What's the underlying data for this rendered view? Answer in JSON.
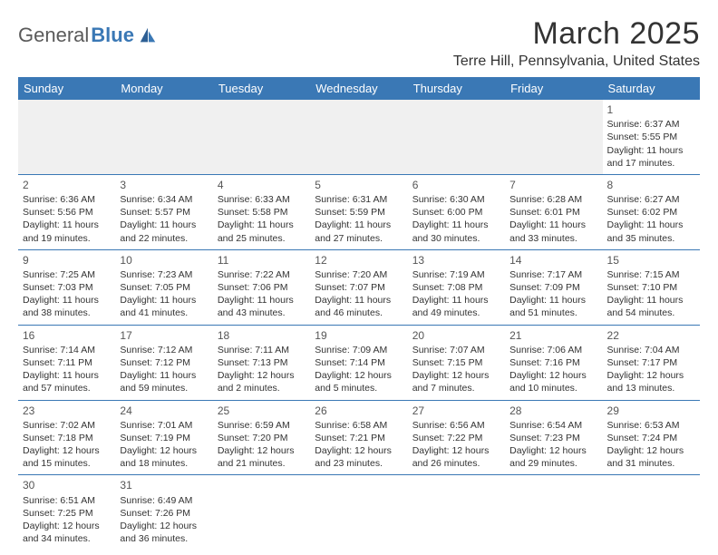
{
  "logo": {
    "part1": "General",
    "part2": "Blue"
  },
  "title": "March 2025",
  "location": "Terre Hill, Pennsylvania, United States",
  "colors": {
    "header_bg": "#3a78b5",
    "header_text": "#ffffff",
    "border": "#3a78b5",
    "text": "#333333",
    "blank_bg": "#f0f0f0"
  },
  "weekdays": [
    "Sunday",
    "Monday",
    "Tuesday",
    "Wednesday",
    "Thursday",
    "Friday",
    "Saturday"
  ],
  "weeks": [
    [
      null,
      null,
      null,
      null,
      null,
      null,
      {
        "n": "1",
        "sr": "Sunrise: 6:37 AM",
        "ss": "Sunset: 5:55 PM",
        "dl": "Daylight: 11 hours and 17 minutes."
      }
    ],
    [
      {
        "n": "2",
        "sr": "Sunrise: 6:36 AM",
        "ss": "Sunset: 5:56 PM",
        "dl": "Daylight: 11 hours and 19 minutes."
      },
      {
        "n": "3",
        "sr": "Sunrise: 6:34 AM",
        "ss": "Sunset: 5:57 PM",
        "dl": "Daylight: 11 hours and 22 minutes."
      },
      {
        "n": "4",
        "sr": "Sunrise: 6:33 AM",
        "ss": "Sunset: 5:58 PM",
        "dl": "Daylight: 11 hours and 25 minutes."
      },
      {
        "n": "5",
        "sr": "Sunrise: 6:31 AM",
        "ss": "Sunset: 5:59 PM",
        "dl": "Daylight: 11 hours and 27 minutes."
      },
      {
        "n": "6",
        "sr": "Sunrise: 6:30 AM",
        "ss": "Sunset: 6:00 PM",
        "dl": "Daylight: 11 hours and 30 minutes."
      },
      {
        "n": "7",
        "sr": "Sunrise: 6:28 AM",
        "ss": "Sunset: 6:01 PM",
        "dl": "Daylight: 11 hours and 33 minutes."
      },
      {
        "n": "8",
        "sr": "Sunrise: 6:27 AM",
        "ss": "Sunset: 6:02 PM",
        "dl": "Daylight: 11 hours and 35 minutes."
      }
    ],
    [
      {
        "n": "9",
        "sr": "Sunrise: 7:25 AM",
        "ss": "Sunset: 7:03 PM",
        "dl": "Daylight: 11 hours and 38 minutes."
      },
      {
        "n": "10",
        "sr": "Sunrise: 7:23 AM",
        "ss": "Sunset: 7:05 PM",
        "dl": "Daylight: 11 hours and 41 minutes."
      },
      {
        "n": "11",
        "sr": "Sunrise: 7:22 AM",
        "ss": "Sunset: 7:06 PM",
        "dl": "Daylight: 11 hours and 43 minutes."
      },
      {
        "n": "12",
        "sr": "Sunrise: 7:20 AM",
        "ss": "Sunset: 7:07 PM",
        "dl": "Daylight: 11 hours and 46 minutes."
      },
      {
        "n": "13",
        "sr": "Sunrise: 7:19 AM",
        "ss": "Sunset: 7:08 PM",
        "dl": "Daylight: 11 hours and 49 minutes."
      },
      {
        "n": "14",
        "sr": "Sunrise: 7:17 AM",
        "ss": "Sunset: 7:09 PM",
        "dl": "Daylight: 11 hours and 51 minutes."
      },
      {
        "n": "15",
        "sr": "Sunrise: 7:15 AM",
        "ss": "Sunset: 7:10 PM",
        "dl": "Daylight: 11 hours and 54 minutes."
      }
    ],
    [
      {
        "n": "16",
        "sr": "Sunrise: 7:14 AM",
        "ss": "Sunset: 7:11 PM",
        "dl": "Daylight: 11 hours and 57 minutes."
      },
      {
        "n": "17",
        "sr": "Sunrise: 7:12 AM",
        "ss": "Sunset: 7:12 PM",
        "dl": "Daylight: 11 hours and 59 minutes."
      },
      {
        "n": "18",
        "sr": "Sunrise: 7:11 AM",
        "ss": "Sunset: 7:13 PM",
        "dl": "Daylight: 12 hours and 2 minutes."
      },
      {
        "n": "19",
        "sr": "Sunrise: 7:09 AM",
        "ss": "Sunset: 7:14 PM",
        "dl": "Daylight: 12 hours and 5 minutes."
      },
      {
        "n": "20",
        "sr": "Sunrise: 7:07 AM",
        "ss": "Sunset: 7:15 PM",
        "dl": "Daylight: 12 hours and 7 minutes."
      },
      {
        "n": "21",
        "sr": "Sunrise: 7:06 AM",
        "ss": "Sunset: 7:16 PM",
        "dl": "Daylight: 12 hours and 10 minutes."
      },
      {
        "n": "22",
        "sr": "Sunrise: 7:04 AM",
        "ss": "Sunset: 7:17 PM",
        "dl": "Daylight: 12 hours and 13 minutes."
      }
    ],
    [
      {
        "n": "23",
        "sr": "Sunrise: 7:02 AM",
        "ss": "Sunset: 7:18 PM",
        "dl": "Daylight: 12 hours and 15 minutes."
      },
      {
        "n": "24",
        "sr": "Sunrise: 7:01 AM",
        "ss": "Sunset: 7:19 PM",
        "dl": "Daylight: 12 hours and 18 minutes."
      },
      {
        "n": "25",
        "sr": "Sunrise: 6:59 AM",
        "ss": "Sunset: 7:20 PM",
        "dl": "Daylight: 12 hours and 21 minutes."
      },
      {
        "n": "26",
        "sr": "Sunrise: 6:58 AM",
        "ss": "Sunset: 7:21 PM",
        "dl": "Daylight: 12 hours and 23 minutes."
      },
      {
        "n": "27",
        "sr": "Sunrise: 6:56 AM",
        "ss": "Sunset: 7:22 PM",
        "dl": "Daylight: 12 hours and 26 minutes."
      },
      {
        "n": "28",
        "sr": "Sunrise: 6:54 AM",
        "ss": "Sunset: 7:23 PM",
        "dl": "Daylight: 12 hours and 29 minutes."
      },
      {
        "n": "29",
        "sr": "Sunrise: 6:53 AM",
        "ss": "Sunset: 7:24 PM",
        "dl": "Daylight: 12 hours and 31 minutes."
      }
    ],
    [
      {
        "n": "30",
        "sr": "Sunrise: 6:51 AM",
        "ss": "Sunset: 7:25 PM",
        "dl": "Daylight: 12 hours and 34 minutes."
      },
      {
        "n": "31",
        "sr": "Sunrise: 6:49 AM",
        "ss": "Sunset: 7:26 PM",
        "dl": "Daylight: 12 hours and 36 minutes."
      },
      null,
      null,
      null,
      null,
      null
    ]
  ]
}
